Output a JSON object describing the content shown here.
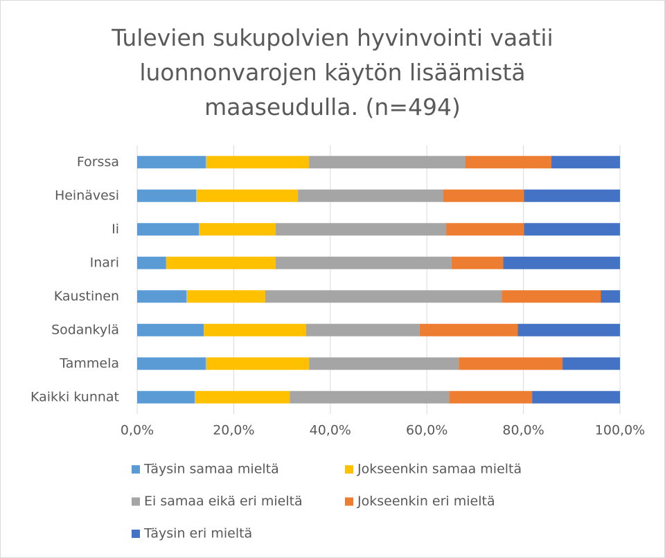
{
  "chart_data": {
    "type": "stacked-bar-horizontal",
    "title": "Tulevien sukupolvien hyvinvointi vaatii luonnonvarojen käytön lisäämistä maaseudulla. (n=494)",
    "categories": [
      "Forssa",
      "Heinävesi",
      "Ii",
      "Inari",
      "Kaustinen",
      "Sodankylä",
      "Tammela",
      "Kaikki kunnat"
    ],
    "series": [
      {
        "name": "Täysin samaa mieltä",
        "color": "#5b9bd5",
        "values": [
          14.2,
          12.2,
          12.8,
          6.0,
          10.2,
          13.8,
          14.2,
          11.9
        ]
      },
      {
        "name": "Jokseenkin samaa mieltä",
        "color": "#ffc000",
        "values": [
          21.4,
          21.1,
          15.9,
          22.7,
          16.3,
          21.2,
          21.4,
          19.7
        ]
      },
      {
        "name": "Ei samaa eikä eri mieltä",
        "color": "#a5a5a5",
        "values": [
          32.3,
          30.0,
          35.3,
          36.4,
          49.0,
          23.5,
          31.0,
          33.0
        ]
      },
      {
        "name": "Jokseenkin eri mieltä",
        "color": "#ed7d31",
        "values": [
          17.9,
          16.8,
          16.1,
          10.7,
          20.5,
          20.3,
          21.5,
          17.2
        ]
      },
      {
        "name": "Täysin eri mieltä",
        "color": "#4472c4",
        "values": [
          14.2,
          19.9,
          19.9,
          24.2,
          4.0,
          21.2,
          11.9,
          18.2
        ]
      }
    ],
    "xlim": [
      0,
      100
    ],
    "xticks": [
      {
        "value": 0,
        "label": "0,0%"
      },
      {
        "value": 20,
        "label": "20,0%"
      },
      {
        "value": 40,
        "label": "40,0%"
      },
      {
        "value": 60,
        "label": "60,0%"
      },
      {
        "value": 80,
        "label": "80,0%"
      },
      {
        "value": 100,
        "label": "100,0%"
      }
    ],
    "grid": true
  }
}
